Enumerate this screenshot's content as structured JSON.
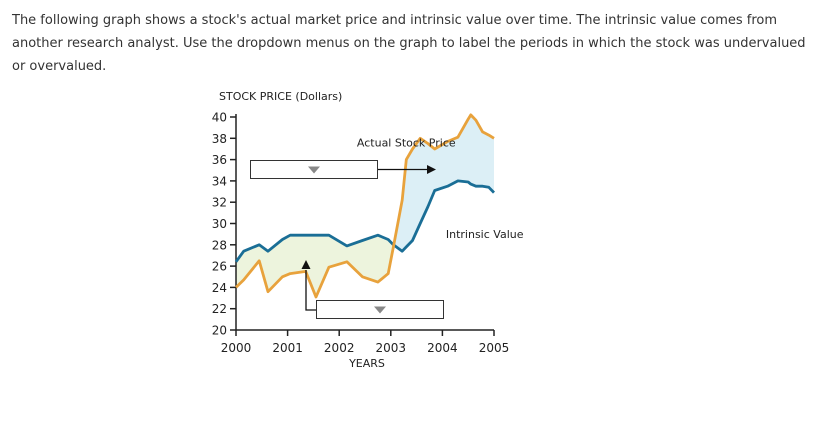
{
  "instructions": "The following graph shows a stock's actual market price and intrinsic value over time. The intrinsic value comes from another research analyst. Use the dropdown menus on the graph to label the periods in which the stock was undervalued or overvalued.",
  "colors": {
    "actual": "#E8A23C",
    "intrinsic": "#1A6E96",
    "fill_under": "#EDF4DD",
    "fill_over": "#DCEFF6",
    "axis": "#222222"
  },
  "dropdowns": [
    {
      "id": "dropdown-period-upper",
      "selected": "",
      "icon": "chevron-down-icon"
    },
    {
      "id": "dropdown-period-lower",
      "selected": "",
      "icon": "chevron-down-icon"
    }
  ],
  "chart_data": {
    "type": "line",
    "ylabel": "STOCK PRICE (Dollars)",
    "xlabel": "YEARS",
    "xlim": [
      2000,
      2005
    ],
    "ylim": [
      20,
      40
    ],
    "xticks": [
      2000,
      2001,
      2002,
      2003,
      2004,
      2005
    ],
    "yticks": [
      20,
      22,
      24,
      26,
      28,
      30,
      32,
      34,
      36,
      38,
      40
    ],
    "series": [
      {
        "name": "Actual Stock Price",
        "x": [
          2000,
          2000.15,
          2000.45,
          2000.62,
          2000.9,
          2001.05,
          2001.35,
          2001.55,
          2001.8,
          2002.15,
          2002.45,
          2002.75,
          2002.95,
          2003.05,
          2003.22,
          2003.3,
          2003.42,
          2003.57,
          2003.72,
          2003.85,
          2004.1,
          2004.3,
          2004.5,
          2004.55,
          2004.65,
          2004.78,
          2004.9,
          2005
        ],
        "y": [
          24,
          24.7,
          26.5,
          23.6,
          25,
          25.3,
          25.5,
          23.1,
          25.9,
          26.4,
          25.0,
          24.5,
          25.3,
          27.8,
          32.2,
          36.0,
          37.0,
          38,
          37.5,
          37,
          37.7,
          38.1,
          39.8,
          40.2,
          39.7,
          38.6,
          38.3,
          38
        ]
      },
      {
        "name": "Intrinsic Value",
        "x": [
          2000,
          2000.15,
          2000.45,
          2000.62,
          2000.9,
          2001.05,
          2001.35,
          2001.55,
          2001.8,
          2002.15,
          2002.45,
          2002.75,
          2002.95,
          2003.05,
          2003.22,
          2003.3,
          2003.42,
          2003.57,
          2003.72,
          2003.85,
          2004.1,
          2004.3,
          2004.5,
          2004.55,
          2004.65,
          2004.78,
          2004.9,
          2005
        ],
        "y": [
          26.4,
          27.4,
          28,
          27.4,
          28.5,
          28.9,
          28.9,
          28.9,
          28.9,
          27.9,
          28.4,
          28.9,
          28.5,
          28.0,
          27.4,
          27.8,
          28.4,
          30,
          31.6,
          33.1,
          33.5,
          34.0,
          33.9,
          33.7,
          33.5,
          33.5,
          33.4,
          32.9
        ]
      }
    ],
    "regions": [
      {
        "name": "period-2000-2003",
        "x_range": [
          2000,
          2003
        ]
      },
      {
        "name": "period-2003-2005",
        "x_range": [
          2003,
          2005
        ]
      }
    ],
    "annotations": [
      {
        "text": "Actual Stock Price",
        "x": 2003.3,
        "y": 37.5
      },
      {
        "text": "Intrinsic Value",
        "x": 2004.3,
        "y": 29
      }
    ],
    "grid": false,
    "legend": "none"
  }
}
